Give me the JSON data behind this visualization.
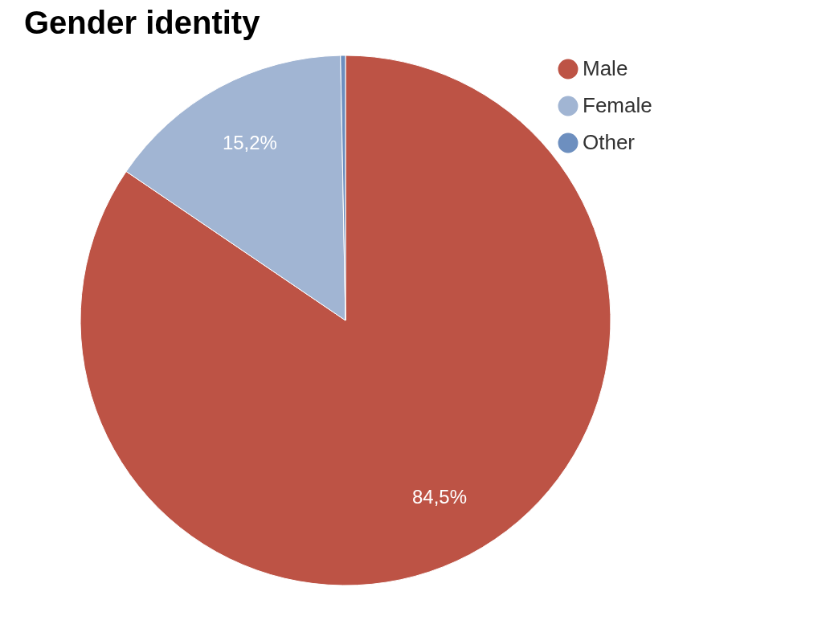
{
  "chart_data": {
    "type": "pie",
    "title": "Gender identity",
    "categories": [
      "Male",
      "Female",
      "Other"
    ],
    "values": [
      84.5,
      15.2,
      0.3
    ],
    "colors": [
      "#bd5345",
      "#a1b5d3",
      "#6d8fbf"
    ],
    "value_labels": [
      "84,5%",
      "15,2%",
      null
    ],
    "legend": "top right"
  }
}
